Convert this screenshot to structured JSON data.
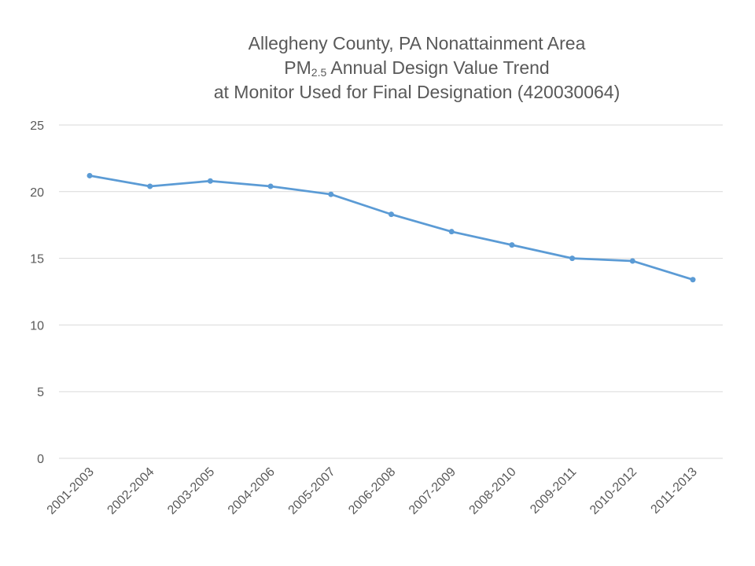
{
  "chart_data": {
    "type": "line",
    "title_line1": "Allegheny County, PA Nonattainment Area",
    "title_line2_prefix": "PM",
    "title_line2_subscript": "2.5",
    "title_line2_suffix": " Annual Design Value Trend",
    "title_line3": "at Monitor Used for Final Designation (420030064)",
    "xlabel": "",
    "ylabel": "",
    "categories": [
      "2001-2003",
      "2002-2004",
      "2003-2005",
      "2004-2006",
      "2005-2007",
      "2006-2008",
      "2007-2009",
      "2008-2010",
      "2009-2011",
      "2010-2012",
      "2011-2013"
    ],
    "series": [
      {
        "values": [
          21.2,
          20.4,
          20.8,
          20.4,
          19.8,
          18.3,
          17.0,
          16.0,
          15.0,
          14.8,
          13.4
        ]
      }
    ],
    "ylim": [
      0,
      25
    ],
    "yticks": [
      0,
      5,
      10,
      15,
      20,
      25
    ],
    "grid": true,
    "legend": "none",
    "colors": {
      "line": "#5b9bd5",
      "grid": "#d9d9d9",
      "text": "#595959"
    }
  }
}
